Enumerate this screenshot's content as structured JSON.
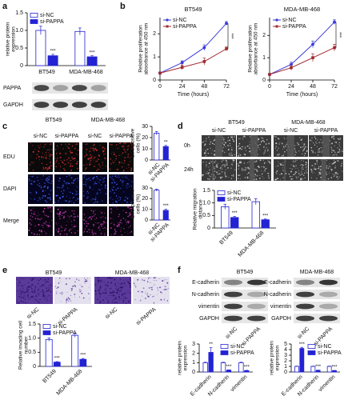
{
  "panel_labels": [
    "a",
    "b",
    "c",
    "d",
    "e",
    "f"
  ],
  "a_blot": {
    "rows": [
      "PAPPA",
      "GAPDH"
    ]
  },
  "c_images": {
    "groups": [
      {
        "cell_line": "BT549",
        "lanes": [
          "si-NC",
          "si-PAPPA"
        ]
      },
      {
        "cell_line": "MDA-MB-468",
        "lanes": [
          "si-NC",
          "si-PAPPA"
        ]
      }
    ],
    "rows": [
      "EDU",
      "DAPI",
      "Merge"
    ]
  },
  "d_images": {
    "groups": [
      {
        "cell_line": "BT549",
        "lanes": [
          "si-NC",
          "si-PAPPA"
        ]
      },
      {
        "cell_line": "MDA-MB-468",
        "lanes": [
          "si-NC",
          "si-PAPPA"
        ]
      }
    ],
    "rows": [
      "0h",
      "24h"
    ]
  },
  "e_images": {
    "groups": [
      {
        "cell_line": "BT549",
        "lanes": [
          "si-NC",
          "si-PAPPA"
        ]
      },
      {
        "cell_line": "MDA-MB-468",
        "lanes": [
          "si-NC",
          "si-PAPPA"
        ]
      }
    ]
  },
  "f_blots": [
    {
      "cell_line": "BT549",
      "rows": [
        "E-cadherin",
        "N-cadherin",
        "vimentin",
        "GAPDH"
      ],
      "lanes": [
        "si-NC",
        "si-PAPPA"
      ]
    },
    {
      "cell_line": "MDA-MB-468",
      "rows": [
        "E-cadherin",
        "N-cadherin",
        "vimentin",
        "GAPDH"
      ],
      "lanes": [
        "si-NC",
        "si-PAPPA"
      ]
    }
  ],
  "chart_data": [
    {
      "type": "bar",
      "ylabel": [
        "relative protein",
        "expression"
      ],
      "categories": [
        "BT549",
        "MDA-MB-468"
      ],
      "series": [
        {
          "name": "si-NC",
          "color": "#2323d4",
          "fill": "#ffffff",
          "values": [
            1.0,
            0.97
          ],
          "errors": [
            0.12,
            0.1
          ]
        },
        {
          "name": "si-PAPPA",
          "color": "#2323d4",
          "fill": "#2323d4",
          "values": [
            0.28,
            0.25
          ],
          "errors": [
            0.04,
            0.03
          ],
          "significance": [
            "***",
            "***"
          ]
        }
      ],
      "ylim": [
        0,
        1.5
      ],
      "yticks": [
        0,
        0.5,
        {
          "value": 1,
          "label": "1.0"
        },
        1.5
      ],
      "legend": "upper left"
    },
    {
      "type": "line",
      "title": "BT549",
      "xlabel": "Time (hours)",
      "ylabel": [
        "Relative proliferation",
        "absorbance at 450 nm"
      ],
      "x": [
        0,
        24,
        48,
        72
      ],
      "series": [
        {
          "name": "si-NC",
          "color": "#3a3ad8",
          "marker": "circle",
          "values": [
            0.3,
            0.75,
            1.4,
            2.45
          ],
          "errors": [
            0.03,
            0.08,
            0.12,
            0.08
          ]
        },
        {
          "name": "si-PAPPA",
          "color": "#a0282e",
          "marker": "square",
          "values": [
            0.3,
            0.55,
            0.8,
            1.35
          ],
          "errors": [
            0.03,
            0.1,
            0.15,
            0.08
          ]
        }
      ],
      "xlim": [
        0,
        72
      ],
      "xticks": [
        0,
        24,
        48,
        72
      ],
      "ylim": [
        0,
        2.7
      ],
      "yticks": [
        0,
        1,
        2
      ],
      "annotation": "***",
      "legend": "upper left"
    },
    {
      "type": "line",
      "title": "MDA-MB-468",
      "xlabel": "Time (hours)",
      "ylabel": [
        "Relative proliferation",
        "absorbance at 450 nm"
      ],
      "x": [
        0,
        24,
        48,
        72
      ],
      "series": [
        {
          "name": "si-NC",
          "color": "#3a3ad8",
          "marker": "circle",
          "values": [
            0.25,
            0.7,
            1.6,
            2.6
          ],
          "errors": [
            0.03,
            0.1,
            0.15,
            0.1
          ]
        },
        {
          "name": "si-PAPPA",
          "color": "#a0282e",
          "marker": "square",
          "values": [
            0.25,
            0.55,
            1.0,
            1.45
          ],
          "errors": [
            0.03,
            0.1,
            0.18,
            0.15
          ]
        }
      ],
      "xlim": [
        0,
        72
      ],
      "xticks": [
        0,
        24,
        48,
        72
      ],
      "ylim": [
        0,
        2.8
      ],
      "yticks": [
        0,
        1,
        2
      ],
      "annotation": "***",
      "legend": "upper left"
    },
    {
      "type": "bar",
      "ylabel": [
        "EdU positive",
        "cells (%)"
      ],
      "categories": [
        "si-NC",
        "si-PAPPA"
      ],
      "values": [
        24,
        12
      ],
      "errors": [
        1.5,
        1
      ],
      "color": "#2323d4",
      "colors": [
        "#ffffff",
        "#2323d4"
      ],
      "significance": [
        null,
        "**"
      ],
      "ylim": [
        0,
        30
      ],
      "yticks": [
        0,
        10,
        20,
        30
      ]
    },
    {
      "type": "bar",
      "ylabel": [
        "EdU positive",
        "cells (%)"
      ],
      "categories": [
        "si-NC",
        "si-PAPPA"
      ],
      "values": [
        28,
        9
      ],
      "errors": [
        1,
        1
      ],
      "color": "#2323d4",
      "colors": [
        "#ffffff",
        "#2323d4"
      ],
      "significance": [
        null,
        "***"
      ],
      "ylim": [
        0,
        30
      ],
      "yticks": [
        0,
        10,
        20,
        30
      ]
    },
    {
      "type": "bar",
      "ylabel": [
        "Relative migration",
        "distance"
      ],
      "categories": [
        "BT549",
        "MDA-MB-468"
      ],
      "series": [
        {
          "name": "si-NC",
          "color": "#2323d4",
          "fill": "#ffffff",
          "values": [
            0.85,
            1.05
          ],
          "errors": [
            0.1,
            0.12
          ]
        },
        {
          "name": "si-PAPPA",
          "color": "#2323d4",
          "fill": "#2323d4",
          "values": [
            0.42,
            0.33
          ],
          "errors": [
            0.04,
            0.03
          ],
          "significance": [
            "***",
            "***"
          ]
        }
      ],
      "ylim": [
        0,
        1.5
      ],
      "yticks": [
        0,
        0.5,
        {
          "value": 1,
          "label": "1.0"
        },
        1.5
      ],
      "legend": "upper left"
    },
    {
      "type": "bar",
      "ylabel": [
        "Relative invading cell",
        "number"
      ],
      "categories": [
        "BT549",
        "MDA-MB-468"
      ],
      "series": [
        {
          "name": "si-NC",
          "color": "#2323d4",
          "fill": "#ffffff",
          "values": [
            0.95,
            1.1
          ],
          "errors": [
            0.06,
            0.07
          ]
        },
        {
          "name": "si-PAPPA",
          "color": "#2323d4",
          "fill": "#2323d4",
          "values": [
            0.15,
            0.25
          ],
          "errors": [
            0.02,
            0.03
          ],
          "significance": [
            "***",
            "***"
          ]
        }
      ],
      "ylim": [
        0,
        1.5
      ],
      "yticks": [
        0,
        0.5,
        {
          "value": 1,
          "label": "1.0"
        },
        1.5
      ],
      "legend": "upper left"
    },
    {
      "type": "bar",
      "ylabel": [
        "relative protein",
        "expression"
      ],
      "categories": [
        "E-cadherin",
        "N-cadherin",
        "vimentin"
      ],
      "series": [
        {
          "name": "si-NC",
          "color": "#2323d4",
          "fill": "#ffffff",
          "values": [
            1,
            1,
            1
          ],
          "errors": [
            0.05,
            0.05,
            0.05
          ]
        },
        {
          "name": "si-PAPPA",
          "color": "#2323d4",
          "fill": "#2323d4",
          "values": [
            2.1,
            0.2,
            0.15
          ],
          "errors": [
            0.5,
            0.03,
            0.03
          ],
          "significance": [
            "**",
            "***",
            "***"
          ]
        }
      ],
      "ylim": [
        0,
        3
      ],
      "yticks": [
        0,
        1,
        2,
        3
      ],
      "legend": "upper right"
    },
    {
      "type": "bar",
      "ylabel": [
        "relative protein",
        "expression"
      ],
      "categories": [
        "E-cadherin",
        "N-cadherin",
        "vimentin"
      ],
      "series": [
        {
          "name": "si-NC",
          "color": "#2323d4",
          "fill": "#ffffff",
          "values": [
            1,
            1,
            1
          ],
          "errors": [
            0.05,
            0.05,
            0.05
          ]
        },
        {
          "name": "si-PAPPA",
          "color": "#2323d4",
          "fill": "#2323d4",
          "values": [
            4.2,
            0.3,
            0.25
          ],
          "errors": [
            0.2,
            0.04,
            0.03
          ],
          "significance": [
            "***",
            "***",
            "***"
          ]
        }
      ],
      "ylim": [
        0,
        5
      ],
      "yticks": [
        0,
        1,
        2,
        3,
        4,
        5
      ],
      "legend": "upper right"
    }
  ]
}
